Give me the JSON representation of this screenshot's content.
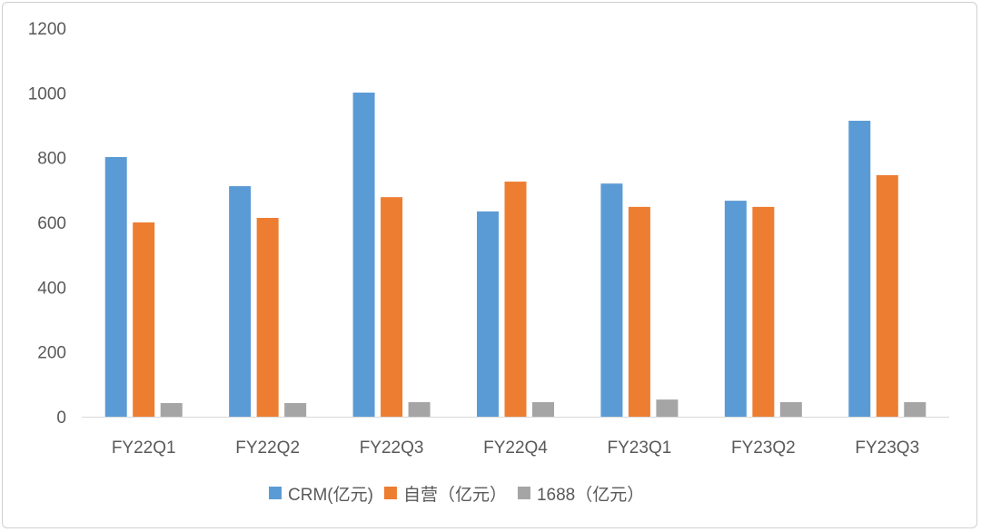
{
  "chart_data": {
    "type": "bar",
    "title": "",
    "xlabel": "",
    "ylabel": "",
    "ylim": [
      0,
      1200
    ],
    "yticks": [
      0,
      200,
      400,
      600,
      800,
      1000,
      1200
    ],
    "grid": false,
    "legend_position": "bottom",
    "categories": [
      "FY22Q1",
      "FY22Q2",
      "FY22Q3",
      "FY22Q4",
      "FY23Q1",
      "FY23Q2",
      "FY23Q3"
    ],
    "series": [
      {
        "name": "CRM(亿元)",
        "color": "#5b9bd5",
        "values": [
          802,
          712,
          1001,
          634,
          720,
          667,
          914
        ]
      },
      {
        "name": "自营（亿元）",
        "color": "#ed7d31",
        "values": [
          600,
          614,
          678,
          726,
          648,
          648,
          746
        ]
      },
      {
        "name": "1688（亿元）",
        "color": "#a5a5a5",
        "values": [
          42,
          42,
          45,
          45,
          53,
          45,
          45
        ]
      }
    ]
  }
}
